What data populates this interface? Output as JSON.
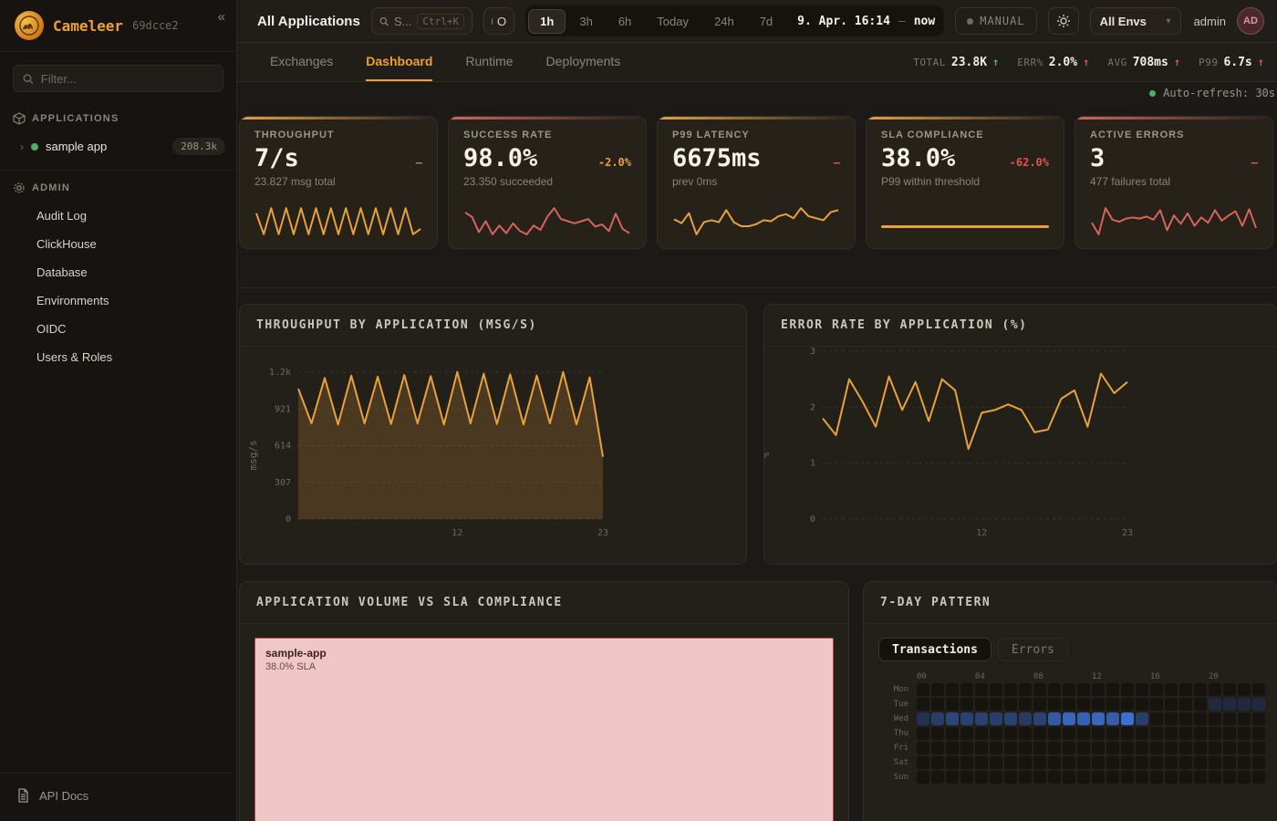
{
  "colors": {
    "orange": "#e9a23b",
    "orange_bright": "#f0a030",
    "red": "#d96459",
    "red_text": "#e05252",
    "green": "#58b368",
    "muted": "#8a8379",
    "heatmap_blue": "#4079e8",
    "treemap_pink": "#f0c6c6",
    "treemap_border": "#b8453c"
  },
  "icons": {
    "collapse": "«",
    "chevron_right": "›",
    "dropdown": "▾",
    "arrow_up": "↑",
    "dash": "–"
  },
  "sidebar": {
    "brand": "Cameleer",
    "version": "69dcce2",
    "filter_placeholder": "Filter...",
    "applications_header": "APPLICATIONS",
    "app": {
      "name": "sample app",
      "badge": "208.3k"
    },
    "admin_header": "ADMIN",
    "admin_items": [
      "Audit Log",
      "ClickHouse",
      "Database",
      "Environments",
      "OIDC",
      "Users & Roles"
    ],
    "api_docs_label": "API Docs"
  },
  "topbar": {
    "title": "All Applications",
    "search": {
      "text": "S...",
      "shortcut": "Ctrl+K"
    },
    "live_label": "O",
    "time_ranges": [
      "1h",
      "3h",
      "6h",
      "Today",
      "24h",
      "7d"
    ],
    "active_range": "1h",
    "date_from": "9. Apr. 16:14",
    "date_sep": "–",
    "date_to": "now",
    "manual_label": "MANUAL",
    "env_selected": "All Envs",
    "user_name": "admin",
    "avatar_initials": "AD"
  },
  "tabs": {
    "items": [
      "Exchanges",
      "Dashboard",
      "Runtime",
      "Deployments"
    ],
    "active": "Dashboard"
  },
  "stats": [
    {
      "label": "TOTAL",
      "value": "23.8K",
      "arrow": "↑",
      "tone": "green"
    },
    {
      "label": "ERR%",
      "value": "2.0%",
      "arrow": "↑",
      "tone": "red"
    },
    {
      "label": "AVG",
      "value": "708ms",
      "arrow": "↑",
      "tone": "red"
    },
    {
      "label": "P99",
      "value": "6.7s",
      "arrow": "↑",
      "tone": "red"
    }
  ],
  "auto_refresh": "Auto-refresh: 30s",
  "kpi_cards": [
    {
      "label": "THROUGHPUT",
      "value": "7/s",
      "delta": "–",
      "delta_color": "#8a8379",
      "subtitle": "23.827 msg total",
      "accent": "#e9a23b",
      "spark_color": "#e9a23b",
      "spark": [
        5,
        1,
        6,
        1,
        6,
        1,
        6,
        1,
        6,
        1,
        6,
        1,
        6,
        1,
        6,
        1,
        6,
        1,
        6,
        1,
        6,
        1,
        2
      ]
    },
    {
      "label": "SUCCESS RATE",
      "value": "98.0%",
      "delta": "-2.0%",
      "delta_color": "#e9a23b",
      "subtitle": "23.350 succeeded",
      "accent": "#d96459",
      "spark_color": "#d96459",
      "spark": [
        3.2,
        2.8,
        1.4,
        2.4,
        1.2,
        2.0,
        1.3,
        2.2,
        1.5,
        1.2,
        2.0,
        1.6,
        2.8,
        3.6,
        2.6,
        2.4,
        2.2,
        2.4,
        2.6,
        1.9,
        2.1,
        1.5,
        3.1,
        1.7,
        1.3
      ]
    },
    {
      "label": "P99 LATENCY",
      "value": "6675ms",
      "delta": "–",
      "delta_color": "#e05252",
      "subtitle": "prev 0ms",
      "accent": "#e9a23b",
      "spark_color": "#e9a23b",
      "spark": [
        2.0,
        1.6,
        2.6,
        0.5,
        1.7,
        1.9,
        1.7,
        2.9,
        1.7,
        1.3,
        1.3,
        1.5,
        1.9,
        1.8,
        2.3,
        2.5,
        2.1,
        3.1,
        2.3,
        2.1,
        1.9,
        2.7,
        2.9
      ]
    },
    {
      "label": "SLA COMPLIANCE",
      "value": "38.0%",
      "delta": "-62.0%",
      "delta_color": "#e05252",
      "subtitle": "P99 within threshold",
      "accent": "#e9a23b",
      "progress_color": "#e9a23b",
      "progress": 100
    },
    {
      "label": "ACTIVE ERRORS",
      "value": "3",
      "delta": "–",
      "delta_color": "#e05252",
      "subtitle": "477 failures total",
      "accent": "#d96459",
      "spark_color": "#d96459",
      "spark": [
        1.6,
        0.5,
        3.0,
        1.9,
        1.7,
        2.0,
        2.1,
        2.0,
        2.2,
        1.9,
        2.8,
        0.9,
        2.3,
        1.5,
        2.5,
        1.3,
        2.1,
        1.6,
        2.8,
        1.8,
        2.3,
        2.7,
        1.3,
        2.9,
        1.1
      ]
    }
  ],
  "chart_data": [
    {
      "type": "line",
      "id": "throughput_by_app",
      "title": "THROUGHPUT BY APPLICATION (MSG/S)",
      "ylabel": "msg/s",
      "x": [
        0,
        1,
        2,
        3,
        4,
        5,
        6,
        7,
        8,
        9,
        10,
        11,
        12,
        13,
        14,
        15,
        16,
        17,
        18,
        19,
        20,
        21,
        22,
        23
      ],
      "values": [
        1090,
        800,
        1180,
        790,
        1200,
        800,
        1190,
        795,
        1205,
        800,
        1195,
        790,
        1230,
        800,
        1215,
        795,
        1210,
        790,
        1200,
        800,
        1230,
        790,
        1185,
        520
      ],
      "ylim": [
        0,
        1228
      ],
      "yticks": [
        {
          "v": 1228,
          "label": "1.2k"
        },
        {
          "v": 921,
          "label": "921"
        },
        {
          "v": 614,
          "label": "614"
        },
        {
          "v": 307,
          "label": "307"
        },
        {
          "v": 0,
          "label": "0"
        }
      ],
      "xticks": [
        {
          "i": 12,
          "label": "12"
        },
        {
          "i": 23,
          "label": "23"
        }
      ],
      "color": "#e9a23b",
      "area": true,
      "grid": "dashed",
      "legend": "none"
    },
    {
      "type": "line",
      "id": "error_rate_by_app",
      "title": "ERROR RATE BY APPLICATION (%)",
      "ylabel": "%",
      "x": [
        0,
        1,
        2,
        3,
        4,
        5,
        6,
        7,
        8,
        9,
        10,
        11,
        12,
        13,
        14,
        15,
        16,
        17,
        18,
        19,
        20,
        21,
        22,
        23
      ],
      "values": [
        1.8,
        1.5,
        2.5,
        2.1,
        1.65,
        2.55,
        1.95,
        2.45,
        1.75,
        2.5,
        2.3,
        1.25,
        1.9,
        1.95,
        2.05,
        1.95,
        1.55,
        1.6,
        2.15,
        2.3,
        1.65,
        2.6,
        2.25,
        2.45
      ],
      "ylim": [
        0,
        3
      ],
      "yticks": [
        {
          "v": 3,
          "label": "3"
        },
        {
          "v": 2,
          "label": "2"
        },
        {
          "v": 1,
          "label": "1"
        },
        {
          "v": 0,
          "label": "0"
        }
      ],
      "xticks": [
        {
          "i": 12,
          "label": "12"
        },
        {
          "i": 23,
          "label": "23"
        }
      ],
      "color": "#e9a23b",
      "area": false,
      "grid": "dashed",
      "legend": "none"
    },
    {
      "type": "treemap",
      "id": "app_volume_sla",
      "title": "APPLICATION VOLUME VS SLA COMPLIANCE",
      "items": [
        {
          "name": "sample-app",
          "sla_label": "38.0% SLA"
        }
      ]
    },
    {
      "type": "heatmap",
      "id": "seven_day_pattern",
      "title": "7-DAY PATTERN",
      "tabs": [
        "Transactions",
        "Errors"
      ],
      "active_tab": "Transactions",
      "row_labels": [
        "Mon",
        "Tue",
        "Wed",
        "Thu",
        "Fri",
        "Sat",
        "Sun"
      ],
      "col_labels": [
        {
          "i": 0,
          "label": "00"
        },
        {
          "i": 4,
          "label": "04"
        },
        {
          "i": 8,
          "label": "08"
        },
        {
          "i": 12,
          "label": "12"
        },
        {
          "i": 16,
          "label": "16"
        },
        {
          "i": 20,
          "label": "20"
        }
      ],
      "cells": [
        [
          0,
          0,
          0,
          0,
          0,
          0,
          0,
          0,
          0,
          0,
          0,
          0,
          0,
          0,
          0,
          0,
          0,
          0,
          0,
          0,
          0,
          0,
          0,
          0
        ],
        [
          0,
          0,
          0,
          0,
          0,
          0,
          0,
          0,
          0,
          0,
          0,
          0,
          0,
          0,
          0,
          0,
          0,
          0,
          0,
          0,
          0.22,
          0.22,
          0.22,
          0.22
        ],
        [
          0.3,
          0.42,
          0.5,
          0.46,
          0.46,
          0.42,
          0.46,
          0.38,
          0.46,
          0.7,
          0.8,
          0.76,
          0.8,
          0.72,
          0.9,
          0.42,
          0,
          0,
          0,
          0,
          0,
          0,
          0,
          0
        ],
        [
          0,
          0,
          0,
          0,
          0,
          0,
          0,
          0,
          0,
          0,
          0,
          0,
          0,
          0,
          0,
          0,
          0,
          0,
          0,
          0,
          0,
          0,
          0,
          0
        ],
        [
          0,
          0,
          0,
          0,
          0,
          0,
          0,
          0,
          0,
          0,
          0,
          0,
          0,
          0,
          0,
          0,
          0,
          0,
          0,
          0,
          0,
          0,
          0,
          0
        ],
        [
          0,
          0,
          0,
          0,
          0,
          0,
          0,
          0,
          0,
          0,
          0,
          0,
          0,
          0,
          0,
          0,
          0,
          0,
          0,
          0,
          0,
          0,
          0,
          0
        ],
        [
          0,
          0,
          0,
          0,
          0,
          0,
          0,
          0,
          0,
          0,
          0,
          0,
          0,
          0,
          0,
          0,
          0,
          0,
          0,
          0,
          0,
          0,
          0,
          0
        ]
      ]
    }
  ]
}
